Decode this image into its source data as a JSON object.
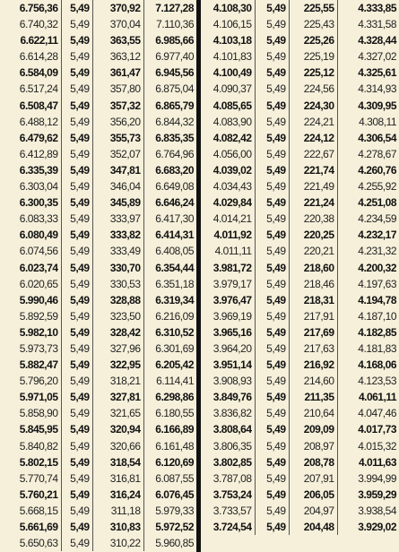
{
  "tables": [
    {
      "rows": [
        [
          "6.756,36",
          "5,49",
          "370,92",
          "7.127,28"
        ],
        [
          "6.740,32",
          "5,49",
          "370,04",
          "7.110,36"
        ],
        [
          "6.622,11",
          "5,49",
          "363,55",
          "6.985,66"
        ],
        [
          "6.614,28",
          "5,49",
          "363,12",
          "6.977,40"
        ],
        [
          "6.584,09",
          "5,49",
          "361,47",
          "6.945,56"
        ],
        [
          "6.517,24",
          "5,49",
          "357,80",
          "6.875,04"
        ],
        [
          "6.508,47",
          "5,49",
          "357,32",
          "6.865,79"
        ],
        [
          "6.488,12",
          "5,49",
          "356,20",
          "6.844,32"
        ],
        [
          "6.479,62",
          "5,49",
          "355,73",
          "6.835,35"
        ],
        [
          "6.412,89",
          "5,49",
          "352,07",
          "6.764,96"
        ],
        [
          "6.335,39",
          "5,49",
          "347,81",
          "6.683,20"
        ],
        [
          "6.303,04",
          "5,49",
          "346,04",
          "6.649,08"
        ],
        [
          "6.300,35",
          "5,49",
          "345,89",
          "6.646,24"
        ],
        [
          "6.083,33",
          "5,49",
          "333,97",
          "6.417,30"
        ],
        [
          "6.080,49",
          "5,49",
          "333,82",
          "6.414,31"
        ],
        [
          "6.074,56",
          "5,49",
          "333,49",
          "6.408,05"
        ],
        [
          "6.023,74",
          "5,49",
          "330,70",
          "6.354,44"
        ],
        [
          "6.020,65",
          "5,49",
          "330,53",
          "6.351,18"
        ],
        [
          "5.990,46",
          "5,49",
          "328,88",
          "6.319,34"
        ],
        [
          "5.892,59",
          "5,49",
          "323,50",
          "6.216,09"
        ],
        [
          "5.982,10",
          "5,49",
          "328,42",
          "6.310,52"
        ],
        [
          "5.973,73",
          "5,49",
          "327,96",
          "6.301,69"
        ],
        [
          "5.882,47",
          "5,49",
          "322,95",
          "6.205,42"
        ],
        [
          "5.796,20",
          "5,49",
          "318,21",
          "6.114,41"
        ],
        [
          "5.971,05",
          "5,49",
          "327,81",
          "6.298,86"
        ],
        [
          "5.858,90",
          "5,49",
          "321,65",
          "6.180,55"
        ],
        [
          "5.845,95",
          "5,49",
          "320,94",
          "6.166,89"
        ],
        [
          "5.840,82",
          "5,49",
          "320,66",
          "6.161,48"
        ],
        [
          "5.802,15",
          "5,49",
          "318,54",
          "6.120,69"
        ],
        [
          "5.770,74",
          "5,49",
          "316,81",
          "6.087,55"
        ],
        [
          "5.760,21",
          "5,49",
          "316,24",
          "6.076,45"
        ],
        [
          "5.668,15",
          "5,49",
          "311,18",
          "5.979,33"
        ],
        [
          "5.661,69",
          "5,49",
          "310,83",
          "5.972,52"
        ],
        [
          "5.650,63",
          "5,49",
          "310,22",
          "5.960,85"
        ]
      ]
    },
    {
      "rows": [
        [
          "4.108,30",
          "5,49",
          "225,55",
          "4.333,85"
        ],
        [
          "4.106,15",
          "5,49",
          "225,43",
          "4.331,58"
        ],
        [
          "4.103,18",
          "5,49",
          "225,26",
          "4.328,44"
        ],
        [
          "4.101,83",
          "5,49",
          "225,19",
          "4.327,02"
        ],
        [
          "4.100,49",
          "5,49",
          "225,12",
          "4.325,61"
        ],
        [
          "4.090,37",
          "5,49",
          "224,56",
          "4.314,93"
        ],
        [
          "4.085,65",
          "5,49",
          "224,30",
          "4.309,95"
        ],
        [
          "4.083,90",
          "5,49",
          "224,21",
          "4.308,11"
        ],
        [
          "4.082,42",
          "5,49",
          "224,12",
          "4.306,54"
        ],
        [
          "4.056,00",
          "5,49",
          "222,67",
          "4.278,67"
        ],
        [
          "4.039,02",
          "5,49",
          "221,74",
          "4.260,76"
        ],
        [
          "4.034,43",
          "5,49",
          "221,49",
          "4.255,92"
        ],
        [
          "4.029,84",
          "5,49",
          "221,24",
          "4.251,08"
        ],
        [
          "4.014,21",
          "5,49",
          "220,38",
          "4.234,59"
        ],
        [
          "4.011,92",
          "5,49",
          "220,25",
          "4.232,17"
        ],
        [
          "4.011,11",
          "5,49",
          "220,21",
          "4.231,32"
        ],
        [
          "3.981,72",
          "5,49",
          "218,60",
          "4.200,32"
        ],
        [
          "3.979,17",
          "5,49",
          "218,46",
          "4.197,63"
        ],
        [
          "3.976,47",
          "5,49",
          "218,31",
          "4.194,78"
        ],
        [
          "3.969,19",
          "5,49",
          "217,91",
          "4.187,10"
        ],
        [
          "3.965,16",
          "5,49",
          "217,69",
          "4.182,85"
        ],
        [
          "3.964,20",
          "5,49",
          "217,63",
          "4.181,83"
        ],
        [
          "3.951,14",
          "5,49",
          "216,92",
          "4.168,06"
        ],
        [
          "3.908,93",
          "5,49",
          "214,60",
          "4.123,53"
        ],
        [
          "3.849,76",
          "5,49",
          "211,35",
          "4.061,11"
        ],
        [
          "3.836,82",
          "5,49",
          "210,64",
          "4.047,46"
        ],
        [
          "3.808,64",
          "5,49",
          "209,09",
          "4.017,73"
        ],
        [
          "3.806,35",
          "5,49",
          "208,97",
          "4.015,32"
        ],
        [
          "3.802,85",
          "5,49",
          "208,78",
          "4.011,63"
        ],
        [
          "3.787,08",
          "5,49",
          "207,91",
          "3.994,99"
        ],
        [
          "3.753,24",
          "5,49",
          "206,05",
          "3.959,29"
        ],
        [
          "3.733,57",
          "5,49",
          "204,97",
          "3.938,54"
        ],
        [
          "3.724,54",
          "5,49",
          "204,48",
          "3.929,02"
        ]
      ]
    }
  ]
}
